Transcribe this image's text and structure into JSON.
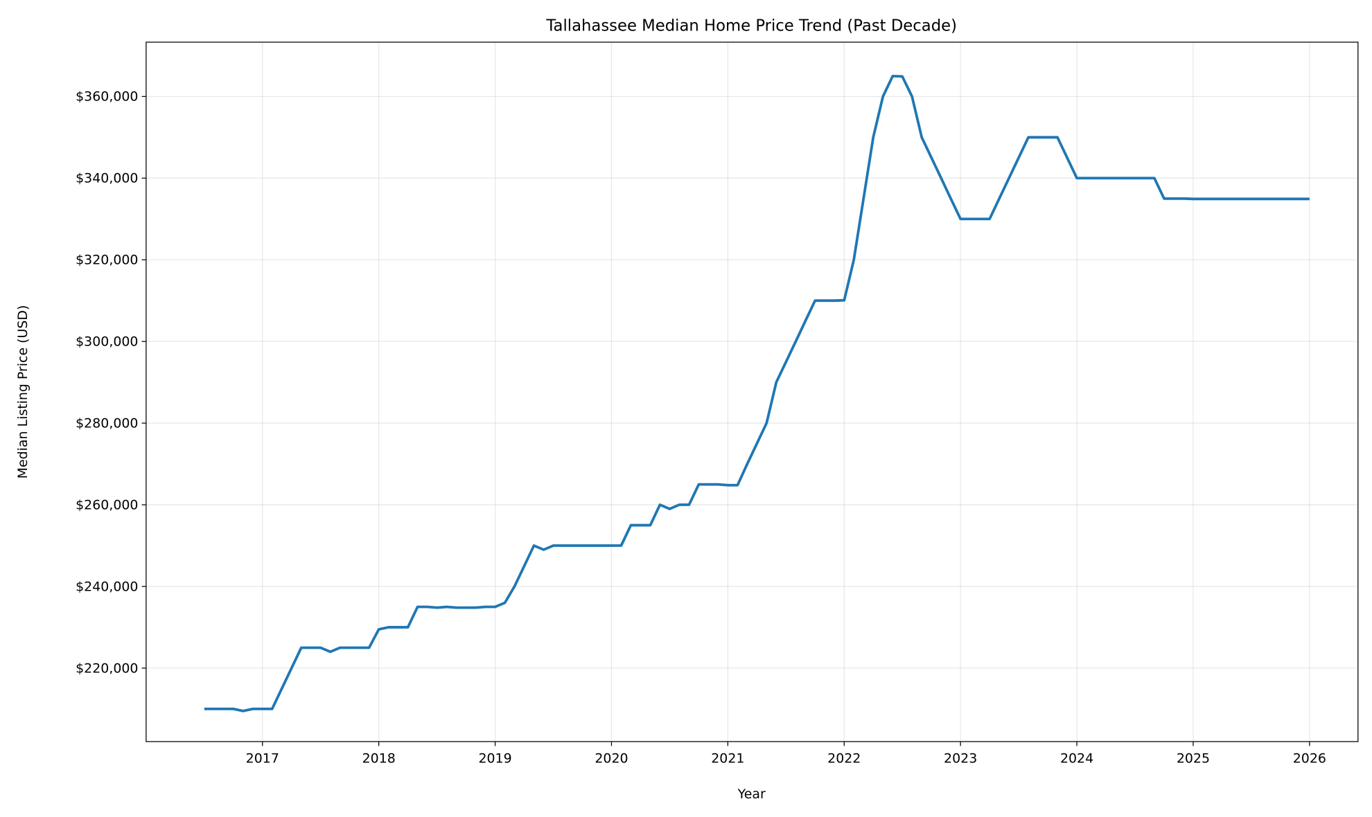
{
  "chart_data": {
    "type": "line",
    "title": "Tallahassee Median Home Price Trend (Past Decade)",
    "xlabel": "Year",
    "ylabel": "Median Listing Price (USD)",
    "xlim": [
      "2016-01",
      "2026-06"
    ],
    "ylim": [
      202000,
      373300
    ],
    "grid": true,
    "line_color": "#1f77b4",
    "x_ticks": [
      "2017",
      "2018",
      "2019",
      "2020",
      "2021",
      "2022",
      "2023",
      "2024",
      "2025",
      "2026"
    ],
    "y_ticks": [
      220000,
      240000,
      260000,
      280000,
      300000,
      320000,
      340000,
      360000
    ],
    "y_tick_labels": [
      "$220,000",
      "$240,000",
      "$260,000",
      "$280,000",
      "$300,000",
      "$320,000",
      "$340,000",
      "$360,000"
    ],
    "start": "2016-07",
    "frequency": "monthly",
    "values": [
      210000,
      210000,
      210000,
      210000,
      209500,
      210000,
      210000,
      210000,
      215000,
      220000,
      225000,
      225000,
      225000,
      224000,
      225000,
      225000,
      225000,
      225000,
      229500,
      230000,
      230000,
      230000,
      235000,
      235000,
      234800,
      235000,
      234800,
      234800,
      234800,
      235000,
      235000,
      236000,
      240000,
      245000,
      250000,
      249000,
      250000,
      250000,
      250000,
      250000,
      250000,
      250000,
      250000,
      250000,
      255000,
      255000,
      255000,
      260000,
      259000,
      260000,
      260000,
      265000,
      265000,
      265000,
      264800,
      264800,
      270000,
      275000,
      280000,
      290000,
      295000,
      300000,
      305000,
      310000,
      310000,
      310000,
      310100,
      320000,
      335000,
      350000,
      360000,
      365000,
      364900,
      360000,
      350000,
      345000,
      340000,
      335000,
      330000,
      330000,
      330000,
      330000,
      335000,
      340000,
      345000,
      350000,
      350000,
      350000,
      350000,
      345000,
      340000,
      340000,
      340000,
      340000,
      340000,
      340000,
      340000,
      340000,
      340000,
      335000,
      335000,
      335000,
      334900,
      334900,
      334900,
      334900,
      334900,
      334900,
      334900,
      334900,
      334900,
      334900,
      334900,
      334900,
      334900
    ]
  }
}
